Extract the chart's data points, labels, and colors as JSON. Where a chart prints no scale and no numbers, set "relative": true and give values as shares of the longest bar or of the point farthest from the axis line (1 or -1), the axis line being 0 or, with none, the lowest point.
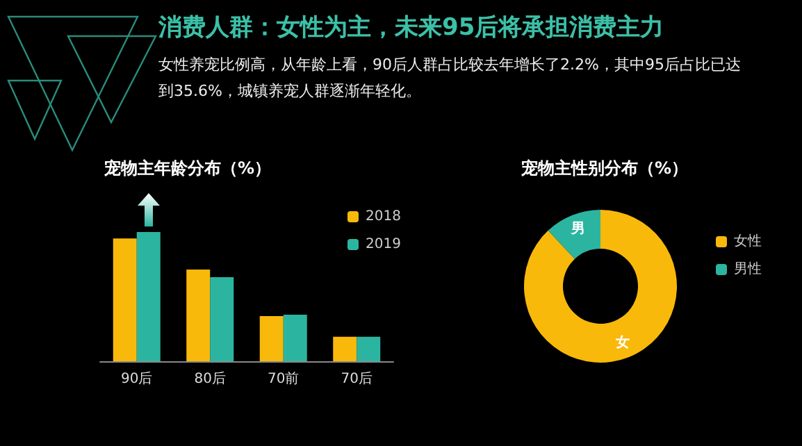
{
  "chart_data": [
    {
      "type": "other",
      "title": "消费人群：女性为主，未来95后将承担消费主力",
      "subtitle": "女性养宠比例高，从年龄上看，90后人群占比较去年增长了2.2%，其中95后占比已达到35.6%，城镇养宠人群逐渐年轻化。"
    },
    {
      "type": "bar",
      "title": "宠物主年龄分布（%）",
      "relative": true,
      "categories": [
        "90后",
        "80后",
        "70前",
        "70后"
      ],
      "series": [
        {
          "name": "2018",
          "color": "#f9b90a",
          "values": [
            0.95,
            0.71,
            0.35,
            0.19
          ]
        },
        {
          "name": "2019",
          "color": "#2bb5a1",
          "values": [
            1,
            0.65,
            0.36,
            0.19
          ]
        }
      ],
      "legend": "top right"
    },
    {
      "type": "donut",
      "title": "宠物主性别分布（%）",
      "categories": [
        "女性",
        "男性"
      ],
      "values": [
        88,
        12
      ],
      "colors": [
        "#f9b90a",
        "#2bb5a1"
      ],
      "value_labels": [
        "女",
        "男"
      ],
      "legend": "right"
    }
  ]
}
